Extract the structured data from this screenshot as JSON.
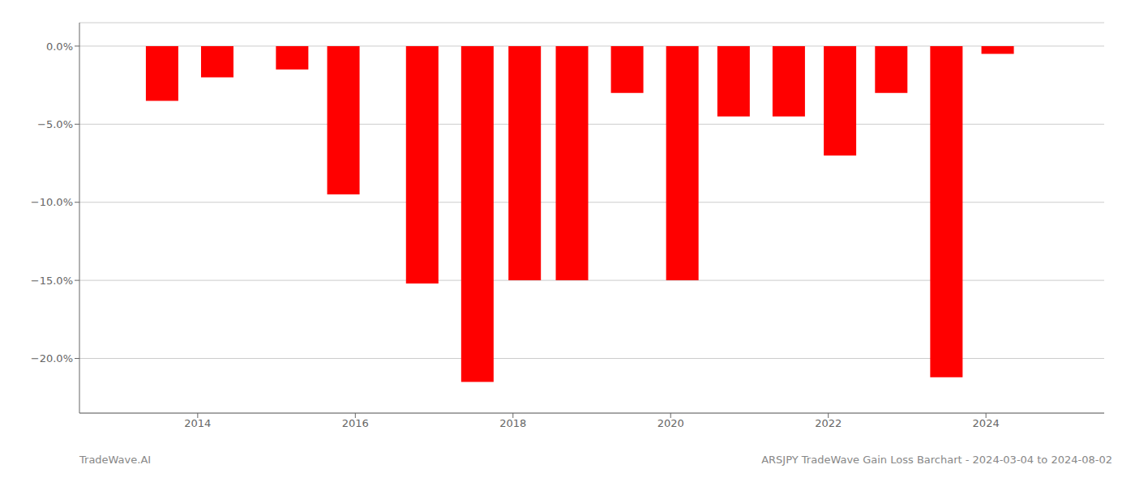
{
  "chart_data": {
    "type": "bar",
    "x": [
      2013.55,
      2014.25,
      2015.2,
      2015.85,
      2016.85,
      2017.55,
      2018.15,
      2018.75,
      2019.45,
      2020.15,
      2020.8,
      2021.5,
      2022.15,
      2022.8,
      2023.5,
      2024.15
    ],
    "values": [
      -3.5,
      -2.0,
      -1.5,
      -9.5,
      -15.2,
      -21.5,
      -15.0,
      -15.0,
      -3.0,
      -15.0,
      -4.5,
      -4.5,
      -7.0,
      -3.0,
      -21.2,
      -0.5
    ],
    "color": "#ff0000",
    "xlim": [
      2012.5,
      2025.5
    ],
    "xticks": [
      2014,
      2016,
      2018,
      2020,
      2022,
      2024
    ],
    "ylim": [
      -23.5,
      1.5
    ],
    "yticks": [
      {
        "value": 0.0,
        "label": "0.0%"
      },
      {
        "value": -5.0,
        "label": "−5.0%"
      },
      {
        "value": -10.0,
        "label": "−10.0%"
      },
      {
        "value": -15.0,
        "label": "−15.0%"
      },
      {
        "value": -20.0,
        "label": "−20.0%"
      }
    ],
    "grid": true,
    "annotations": [
      "TradeWave.AI",
      "ARSJPY TradeWave Gain Loss Barchart - 2024-03-04 to 2024-08-02"
    ]
  }
}
